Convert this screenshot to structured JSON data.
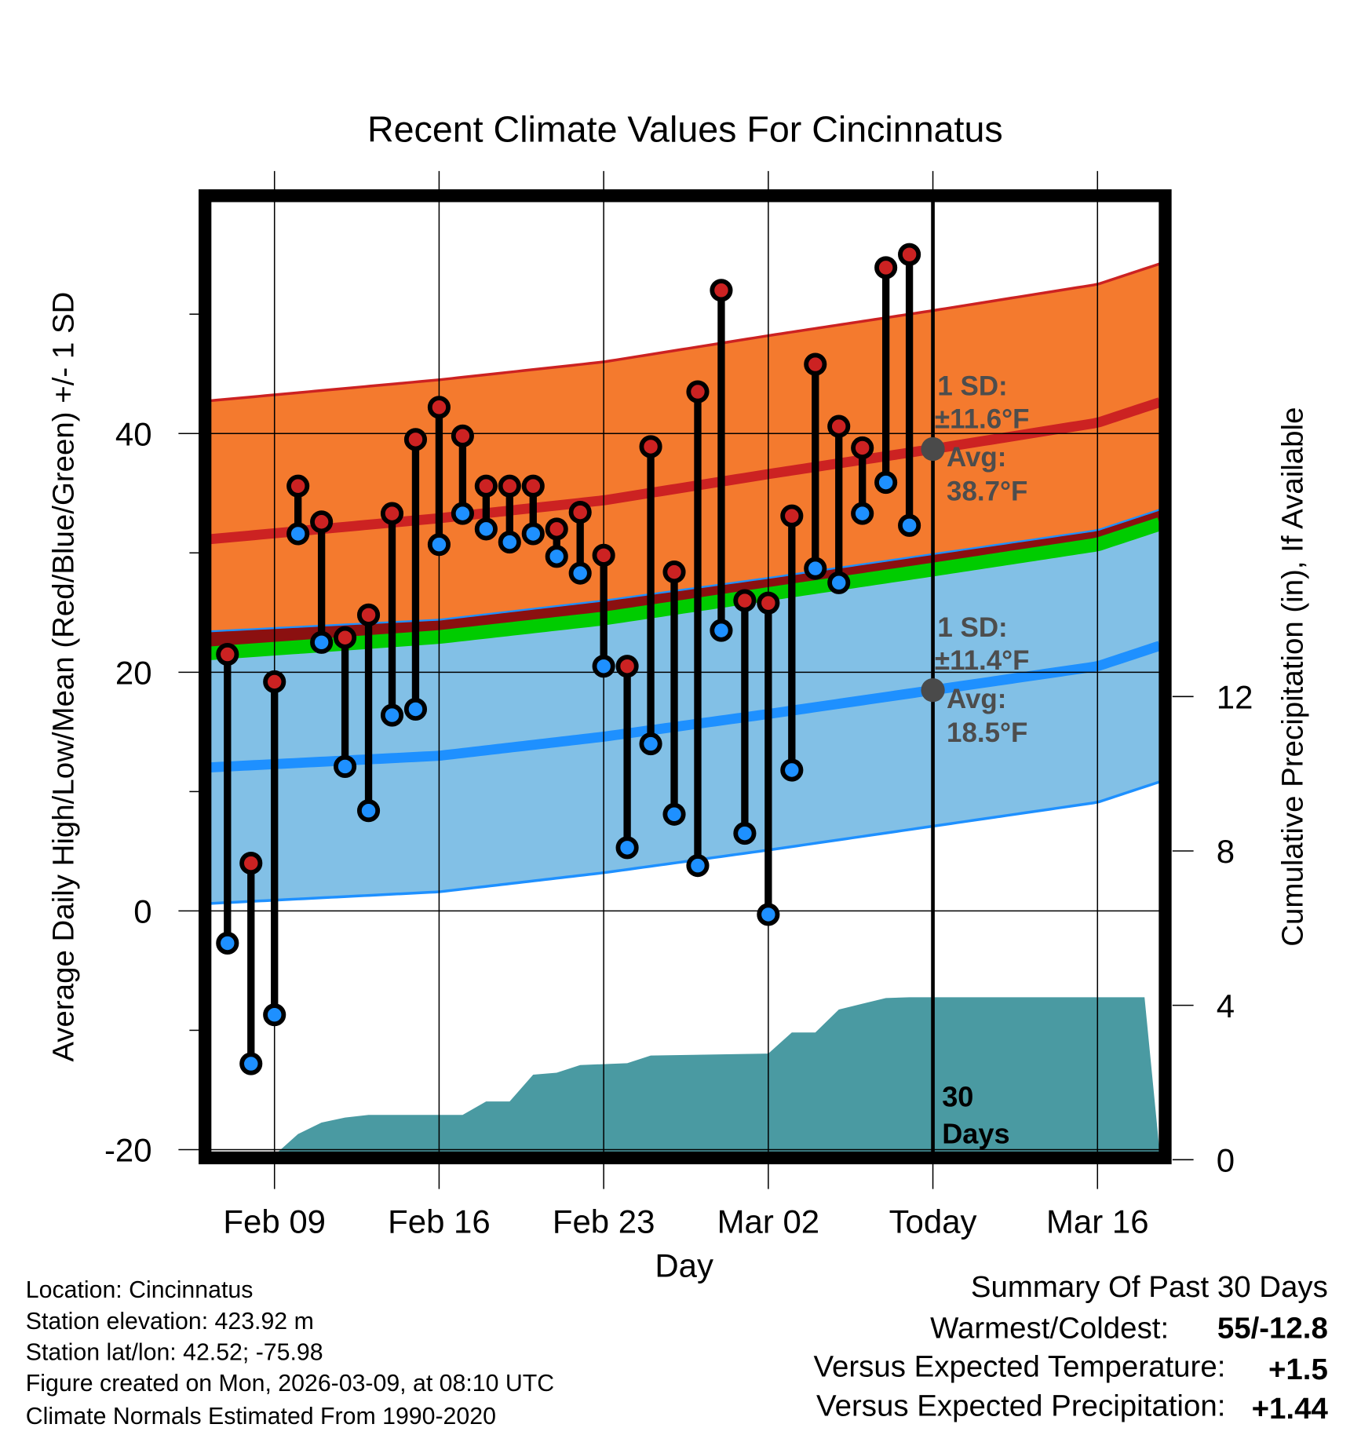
{
  "chart_data": {
    "type": "line",
    "title": "Recent Climate Values For Cincinnatus",
    "xlabel": "Day",
    "ylabel": "Average Daily High/Low/Mean (Red/Blue/Green) +/- 1 SD",
    "y2label": "Cumulative Precipitation (in), If Available",
    "ylim": [
      -20,
      59.5
    ],
    "y2lim": [
      0,
      18.9
    ],
    "xlim": [
      "Feb 06",
      "Mar 18"
    ],
    "yticks": [
      "-20",
      "0",
      "20",
      "40"
    ],
    "yticks_values": [
      -20,
      0,
      20,
      40
    ],
    "y2ticks": [
      "0",
      "4",
      "8",
      "12"
    ],
    "y2ticks_values": [
      0,
      4,
      8,
      12
    ],
    "xticks": [
      {
        "date": "Feb 09",
        "label": "Feb 09"
      },
      {
        "date": "Feb 16",
        "label": "Feb 16"
      },
      {
        "date": "Feb 23",
        "label": "Feb 23"
      },
      {
        "date": "Mar 02",
        "label": "Mar 02"
      },
      {
        "date": "Mar 09",
        "label": "Today"
      },
      {
        "date": "Mar 16",
        "label": "Mar 16"
      }
    ],
    "grid": true,
    "today": "Mar 09",
    "daily": [
      {
        "date": "Feb 07",
        "high": 21.5,
        "low": -2.7
      },
      {
        "date": "Feb 08",
        "high": 4.0,
        "low": -12.8
      },
      {
        "date": "Feb 09",
        "high": 19.2,
        "low": -8.7
      },
      {
        "date": "Feb 10",
        "high": 35.6,
        "low": 31.6
      },
      {
        "date": "Feb 11",
        "high": 32.6,
        "low": 22.5
      },
      {
        "date": "Feb 12",
        "high": 22.9,
        "low": 12.1
      },
      {
        "date": "Feb 13",
        "high": 24.8,
        "low": 8.4
      },
      {
        "date": "Feb 14",
        "high": 33.3,
        "low": 16.4
      },
      {
        "date": "Feb 15",
        "high": 39.5,
        "low": 16.9
      },
      {
        "date": "Feb 16",
        "high": 42.2,
        "low": 30.7
      },
      {
        "date": "Feb 17",
        "high": 39.8,
        "low": 33.3
      },
      {
        "date": "Feb 18",
        "high": 35.6,
        "low": 32.0
      },
      {
        "date": "Feb 19",
        "high": 35.6,
        "low": 30.9
      },
      {
        "date": "Feb 20",
        "high": 35.6,
        "low": 31.6
      },
      {
        "date": "Feb 21",
        "high": 32.0,
        "low": 29.7
      },
      {
        "date": "Feb 22",
        "high": 33.4,
        "low": 28.3
      },
      {
        "date": "Feb 23",
        "high": 29.8,
        "low": 20.5
      },
      {
        "date": "Feb 24",
        "high": 20.5,
        "low": 5.3
      },
      {
        "date": "Feb 25",
        "high": 38.9,
        "low": 14.0
      },
      {
        "date": "Feb 26",
        "high": 28.4,
        "low": 8.1
      },
      {
        "date": "Feb 27",
        "high": 43.5,
        "low": 3.8
      },
      {
        "date": "Feb 28",
        "high": 52.0,
        "low": 23.5
      },
      {
        "date": "Mar 01",
        "high": 26.0,
        "low": 6.5
      },
      {
        "date": "Mar 02",
        "high": 25.8,
        "low": -0.3
      },
      {
        "date": "Mar 03",
        "high": 33.1,
        "low": 11.8
      },
      {
        "date": "Mar 04",
        "high": 45.8,
        "low": 28.7
      },
      {
        "date": "Mar 05",
        "high": 40.6,
        "low": 27.5
      },
      {
        "date": "Mar 06",
        "high": 38.8,
        "low": 33.3
      },
      {
        "date": "Mar 07",
        "high": 53.9,
        "low": 35.9
      },
      {
        "date": "Mar 08",
        "high": 55.0,
        "low": 32.3
      }
    ],
    "normals": {
      "high_sd": 11.6,
      "low_sd": 11.4,
      "points": [
        {
          "date": "Feb 06",
          "high": 31.1,
          "low": 12.0
        },
        {
          "date": "Feb 16",
          "high": 32.9,
          "low": 13.0
        },
        {
          "date": "Feb 23",
          "high": 34.4,
          "low": 14.6
        },
        {
          "date": "Mar 02",
          "high": 36.6,
          "low": 16.5
        },
        {
          "date": "Mar 09",
          "high": 38.7,
          "low": 18.5
        },
        {
          "date": "Mar 16",
          "high": 40.9,
          "low": 20.5
        },
        {
          "date": "Mar 18",
          "high": 42.2,
          "low": 21.8
        }
      ]
    },
    "precip_cumulative": [
      {
        "date": "Feb 06",
        "value": 0
      },
      {
        "date": "Feb 09",
        "value": 0
      },
      {
        "date": "Feb 10",
        "value": 0.55
      },
      {
        "date": "Feb 11",
        "value": 0.85
      },
      {
        "date": "Feb 12",
        "value": 0.98
      },
      {
        "date": "Feb 13",
        "value": 1.05
      },
      {
        "date": "Feb 17",
        "value": 1.05
      },
      {
        "date": "Feb 18",
        "value": 1.4
      },
      {
        "date": "Feb 19",
        "value": 1.4
      },
      {
        "date": "Feb 20",
        "value": 2.1
      },
      {
        "date": "Feb 21",
        "value": 2.15
      },
      {
        "date": "Feb 22",
        "value": 2.35
      },
      {
        "date": "Feb 24",
        "value": 2.4
      },
      {
        "date": "Feb 25",
        "value": 2.6
      },
      {
        "date": "Mar 02",
        "value": 2.65
      },
      {
        "date": "Mar 03",
        "value": 3.2
      },
      {
        "date": "Mar 04",
        "value": 3.2
      },
      {
        "date": "Mar 05",
        "value": 3.8
      },
      {
        "date": "Mar 06",
        "value": 3.95
      },
      {
        "date": "Mar 07",
        "value": 4.1
      },
      {
        "date": "Mar 08",
        "value": 4.12
      },
      {
        "date": "Mar 18",
        "value": 4.12
      }
    ],
    "annotations": {
      "high_sd_label": "1 SD:",
      "high_sd_value": "±11.6°F",
      "high_avg_label": "Avg:",
      "high_avg_value": "38.7°F",
      "low_sd_label": "1 SD:",
      "low_sd_value": "±11.4°F",
      "low_avg_label": "Avg:",
      "low_avg_value": "18.5°F",
      "days_count": "30",
      "days_word": "Days"
    },
    "colors": {
      "high_band": "#f47a2e",
      "high_line": "#cc2222",
      "low_band": "#82c0e6",
      "low_line": "#1e90ff",
      "mean_line": "#00cc00",
      "overlap": "#8b1010",
      "precip": "#4a9aa2",
      "high_point": "#cc2222",
      "low_point": "#1e90ff"
    }
  },
  "footer": {
    "location": "Location: Cincinnatus",
    "elevation": "Station elevation: 423.92 m",
    "latlon": "Station lat/lon: 42.52; -75.98",
    "created": "Figure created on Mon, 2026-03-09, at 08:10 UTC",
    "normals": "Climate Normals Estimated From 1990-2020"
  },
  "summary": {
    "title": "Summary Of Past 30 Days",
    "warmest_label": "Warmest/Coldest:",
    "warmest_value": "55/-12.8",
    "temp_label": "Versus Expected Temperature:",
    "temp_value": "+1.5",
    "temp_color": "#cc2222",
    "precip_label": "Versus Expected Precipitation:",
    "precip_value": "+1.44",
    "precip_color": "#22bb22"
  }
}
